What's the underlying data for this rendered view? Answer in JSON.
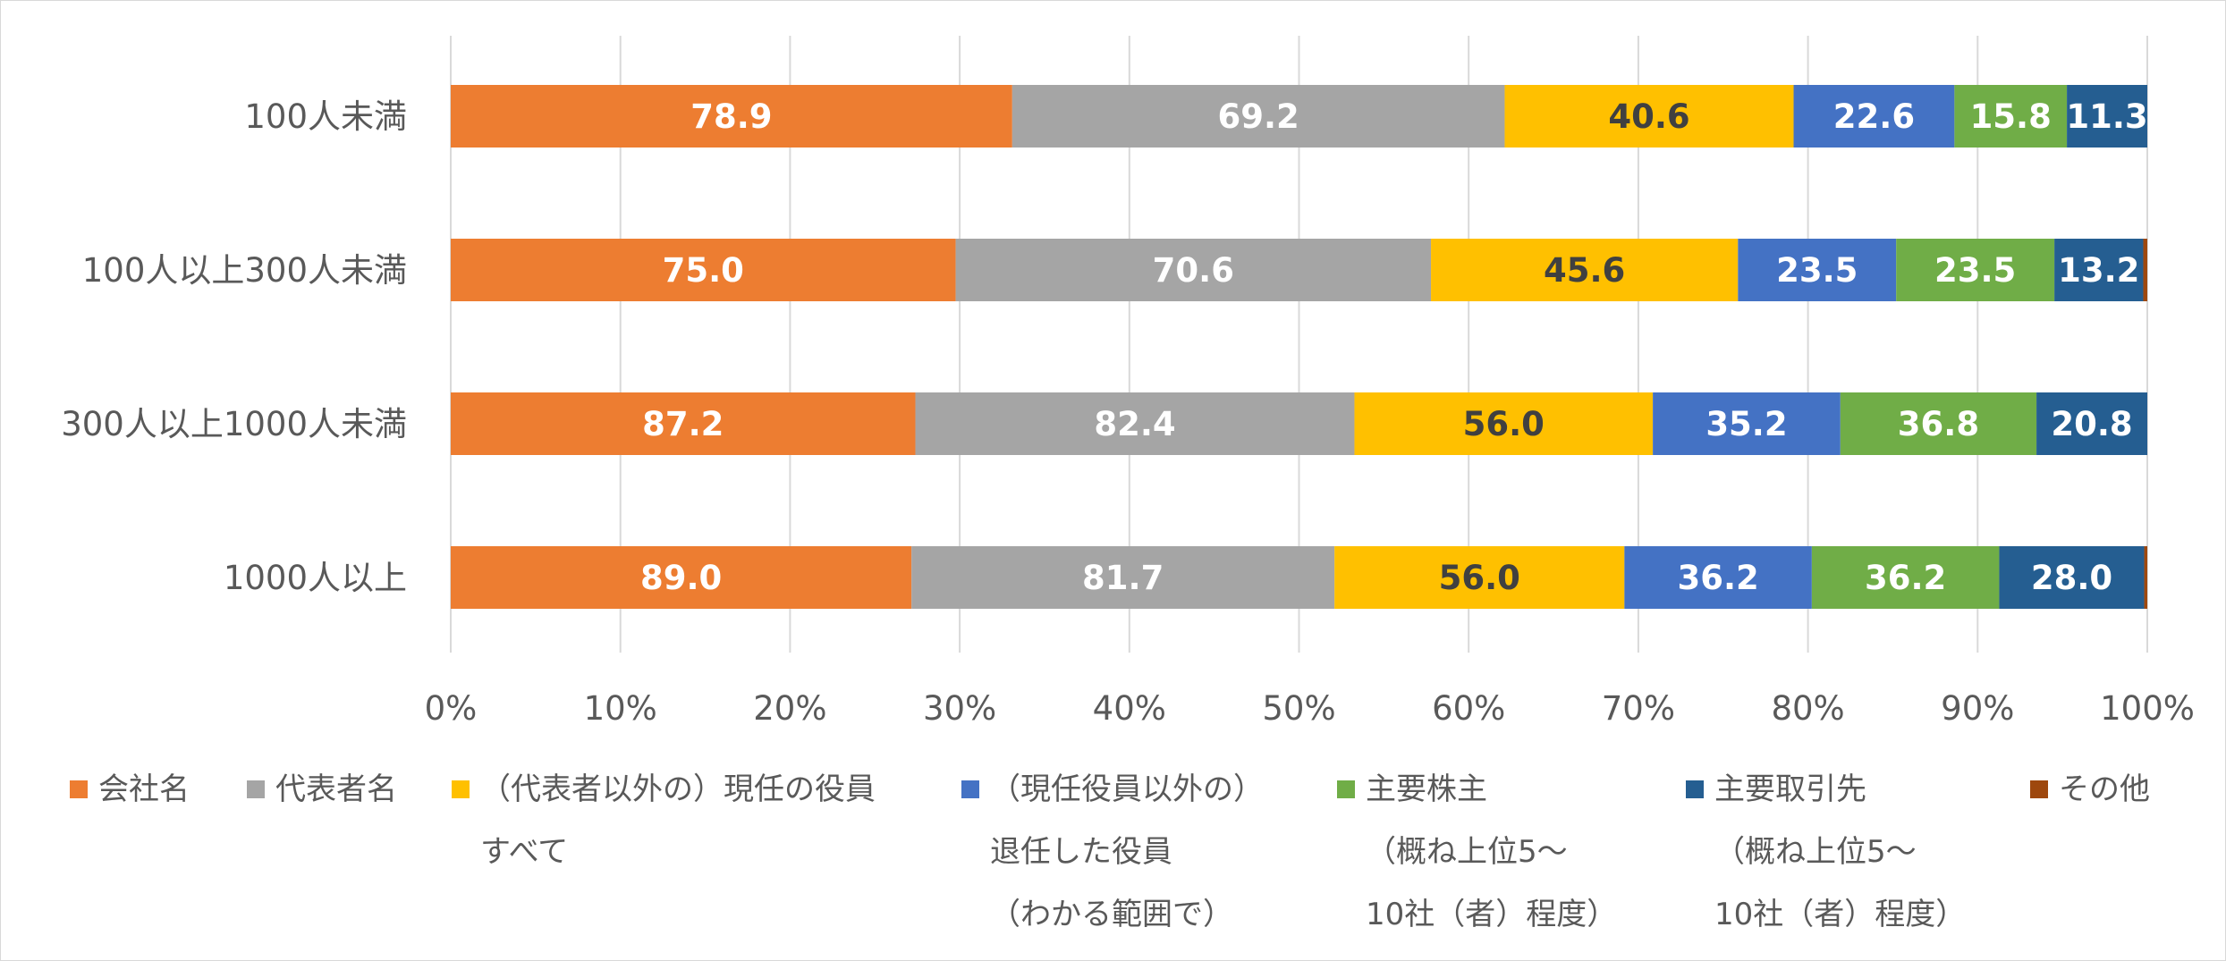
{
  "chart_data": {
    "type": "bar",
    "orientation": "horizontal",
    "stacked": "percent",
    "categories": [
      "100人未満",
      "100人以上300人未満",
      "300人以上1000人未満",
      "1000人以上"
    ],
    "series": [
      {
        "name": "会社名",
        "legend_lines": [
          "会社名"
        ],
        "color": "#ED7D31",
        "label_color": "#ffffff",
        "values": [
          78.9,
          75.0,
          87.2,
          89.0
        ]
      },
      {
        "name": "代表者名",
        "legend_lines": [
          "代表者名"
        ],
        "color": "#A5A5A5",
        "label_color": "#ffffff",
        "values": [
          69.2,
          70.6,
          82.4,
          81.7
        ]
      },
      {
        "name": "（代表者以外の）現任の役員すべて",
        "legend_lines": [
          "（代表者以外の）現任の役員",
          "すべて"
        ],
        "color": "#FFC000",
        "label_color": "#404040",
        "values": [
          40.6,
          45.6,
          56.0,
          56.0
        ]
      },
      {
        "name": "（現任役員以外の）退任した役員（わかる範囲で）",
        "legend_lines": [
          "（現任役員以外の）",
          "退任した役員",
          "（わかる範囲で）"
        ],
        "color": "#4472C4",
        "label_color": "#ffffff",
        "values": [
          22.6,
          23.5,
          35.2,
          36.2
        ]
      },
      {
        "name": "主要株主（概ね上位5～10社（者）程度）",
        "legend_lines": [
          "主要株主",
          "（概ね上位5～",
          "10社（者）程度）"
        ],
        "color": "#70AD47",
        "label_color": "#ffffff",
        "values": [
          15.8,
          23.5,
          36.8,
          36.2
        ]
      },
      {
        "name": "主要取引先（概ね上位5～10社（者）程度）",
        "legend_lines": [
          "主要取引先",
          "（概ね上位5～",
          "10社（者）程度）"
        ],
        "color": "#255E91",
        "label_color": "#ffffff",
        "values": [
          11.3,
          13.2,
          20.8,
          28.0
        ]
      },
      {
        "name": "その他",
        "legend_lines": [
          "その他"
        ],
        "color": "#9E480E",
        "label_color": "#ffffff",
        "values": [
          0.0,
          0.6,
          0.0,
          0.6
        ]
      }
    ],
    "data_labels_shown_for": [
      0,
      1,
      2,
      3,
      4,
      5
    ],
    "xlim": [
      0,
      100
    ],
    "x_ticks": [
      "0%",
      "10%",
      "20%",
      "30%",
      "40%",
      "50%",
      "60%",
      "70%",
      "80%",
      "90%",
      "100%"
    ],
    "grid": "vertical",
    "legend_position": "bottom",
    "title": "",
    "xlabel": "",
    "ylabel": ""
  }
}
